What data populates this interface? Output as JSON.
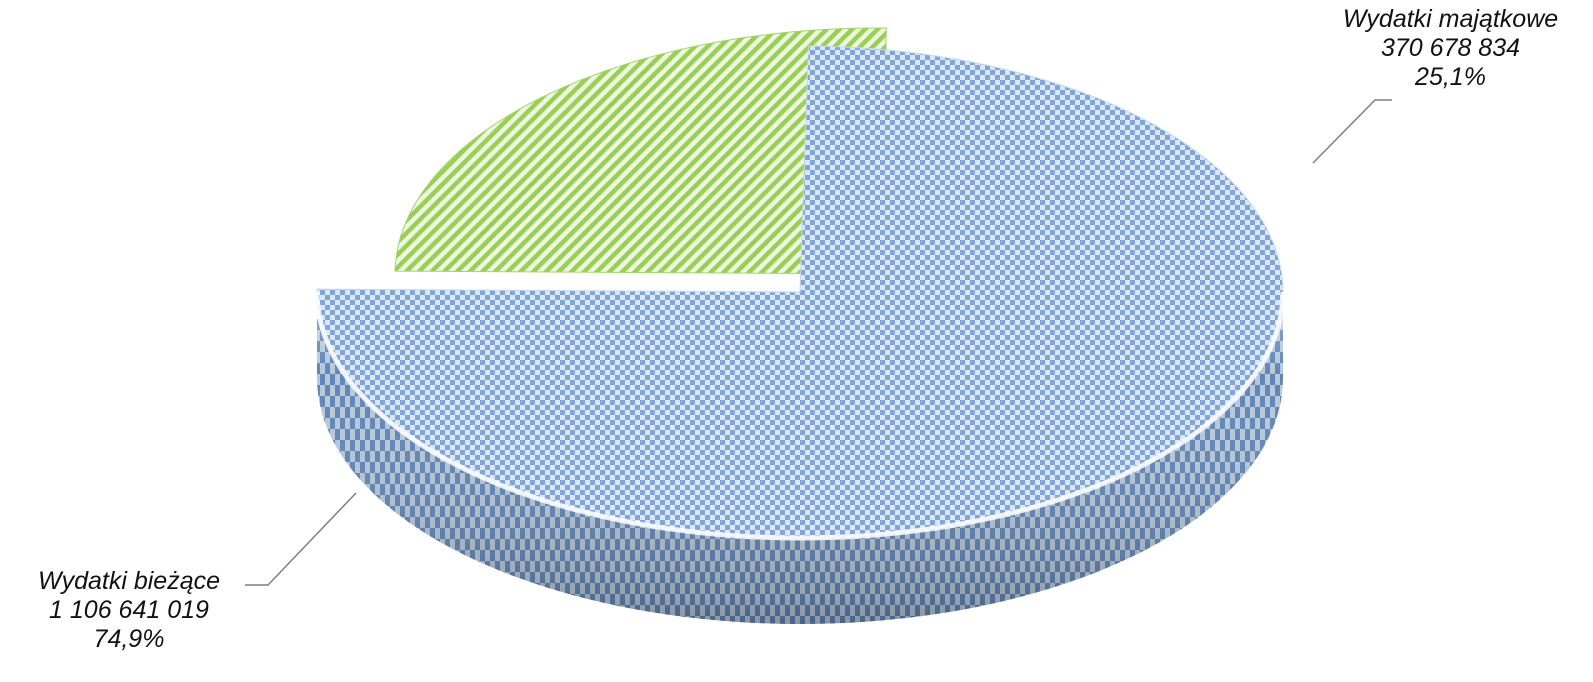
{
  "chart_data": {
    "type": "pie",
    "style": "3d-exploded",
    "title": "",
    "slices": [
      {
        "name": "Wydatki bieżące",
        "value": 1106641019,
        "value_label": "1 106 641 019",
        "percent": 74.9,
        "percent_label": "74,9%",
        "color": "#6f9bd3",
        "color_light": "#dbe7f5"
      },
      {
        "name": "Wydatki majątkowe",
        "value": 370678834,
        "value_label": "370 678 834",
        "percent": 25.1,
        "percent_label": "25,1%",
        "color": "#8fcc46",
        "color_dark": "#4a6e28"
      }
    ],
    "legend": "none"
  }
}
